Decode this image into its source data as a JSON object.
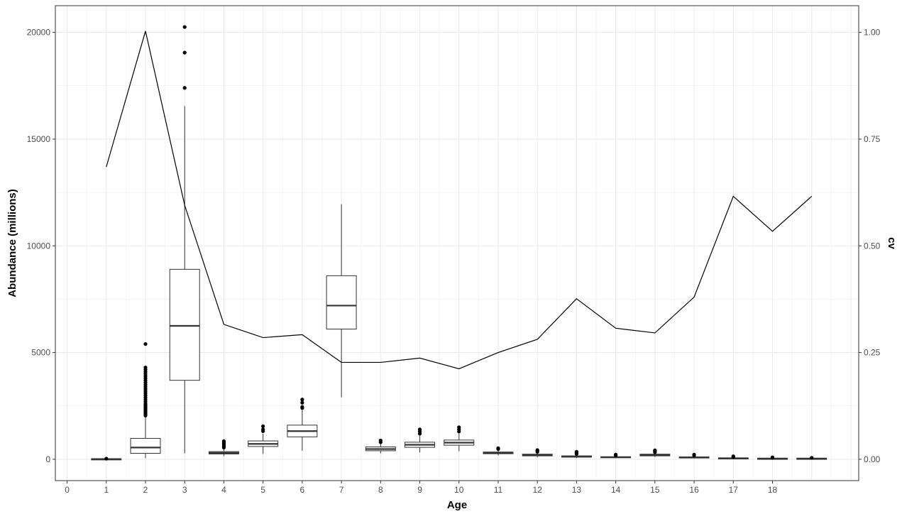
{
  "chart_data": {
    "type": "box",
    "xlabel": "Age",
    "ylabel": "Abundance (millions)",
    "y2label": "cv",
    "x_ticks": [
      "0",
      "1",
      "2",
      "3",
      "4",
      "5",
      "6",
      "7",
      "8",
      "9",
      "10",
      "11",
      "12",
      "13",
      "14",
      "15",
      "16",
      "17",
      "18"
    ],
    "y_ticks": [
      "0",
      "5000",
      "10000",
      "15000",
      "20000"
    ],
    "y2_ticks": [
      "0.00",
      "0.25",
      "0.50",
      "0.75",
      "1.00"
    ],
    "xlim": [
      -0.3,
      20.2
    ],
    "ylim": [
      -1000,
      21250
    ],
    "y2lim": [
      -0.05,
      1.0625
    ],
    "grid": true,
    "legend": "none",
    "colors": {
      "box": "#333333",
      "line": "#000000",
      "grid": "#ebebeb",
      "panel_border": "#333333"
    },
    "boxplots": [
      {
        "x": 1,
        "min": 0,
        "q1": 0,
        "median": 10,
        "q3": 20,
        "max": 40,
        "outliers": [
          30
        ]
      },
      {
        "x": 2,
        "min": 50,
        "q1": 280,
        "median": 550,
        "q3": 980,
        "max": 2000,
        "outliers": [
          2050,
          2100,
          2150,
          2200,
          2250,
          2300,
          2350,
          2400,
          2450,
          2500,
          2550,
          2600,
          2700,
          2800,
          2900,
          3000,
          3100,
          3200,
          3300,
          3400,
          3500,
          3600,
          3700,
          3800,
          3900,
          4000,
          4100,
          4200,
          4300,
          5400
        ]
      },
      {
        "x": 3,
        "min": 280,
        "q1": 3700,
        "median": 6250,
        "q3": 8900,
        "max": 16550,
        "outliers": [
          17400,
          19050,
          20250
        ]
      },
      {
        "x": 4,
        "min": 150,
        "q1": 250,
        "median": 300,
        "q3": 360,
        "max": 480,
        "outliers": [
          550,
          600,
          650,
          700,
          750,
          800,
          850
        ]
      },
      {
        "x": 5,
        "min": 250,
        "q1": 600,
        "median": 720,
        "q3": 860,
        "max": 1200,
        "outliers": [
          1320,
          1400,
          1550
        ]
      },
      {
        "x": 6,
        "min": 400,
        "q1": 1050,
        "median": 1320,
        "q3": 1600,
        "max": 2300,
        "outliers": [
          2400,
          2450,
          2650,
          2800
        ]
      },
      {
        "x": 7,
        "min": 2900,
        "q1": 6100,
        "median": 7200,
        "q3": 8600,
        "max": 11950,
        "outliers": []
      },
      {
        "x": 8,
        "min": 280,
        "q1": 400,
        "median": 480,
        "q3": 580,
        "max": 720,
        "outliers": [
          800,
          880
        ]
      },
      {
        "x": 9,
        "min": 320,
        "q1": 560,
        "median": 680,
        "q3": 800,
        "max": 1100,
        "outliers": [
          1200,
          1300,
          1400
        ]
      },
      {
        "x": 10,
        "min": 380,
        "q1": 660,
        "median": 780,
        "q3": 900,
        "max": 1200,
        "outliers": [
          1300,
          1400,
          1500
        ]
      },
      {
        "x": 11,
        "min": 180,
        "q1": 260,
        "median": 300,
        "q3": 340,
        "max": 420,
        "outliers": [
          480,
          520
        ]
      },
      {
        "x": 12,
        "min": 100,
        "q1": 160,
        "median": 200,
        "q3": 240,
        "max": 310,
        "outliers": [
          350,
          400,
          430
        ]
      },
      {
        "x": 13,
        "min": 60,
        "q1": 100,
        "median": 130,
        "q3": 160,
        "max": 220,
        "outliers": [
          250,
          280,
          320,
          350
        ]
      },
      {
        "x": 14,
        "min": 50,
        "q1": 80,
        "median": 100,
        "q3": 120,
        "max": 160,
        "outliers": [
          180,
          220
        ]
      },
      {
        "x": 15,
        "min": 110,
        "q1": 160,
        "median": 200,
        "q3": 240,
        "max": 300,
        "outliers": [
          330,
          380,
          420
        ]
      },
      {
        "x": 16,
        "min": 40,
        "q1": 70,
        "median": 90,
        "q3": 110,
        "max": 150,
        "outliers": [
          180,
          220
        ]
      },
      {
        "x": 17,
        "min": 15,
        "q1": 35,
        "median": 50,
        "q3": 65,
        "max": 90,
        "outliers": [
          110,
          140
        ]
      },
      {
        "x": 18,
        "min": 10,
        "q1": 25,
        "median": 35,
        "q3": 45,
        "max": 60,
        "outliers": [
          70,
          90
        ]
      },
      {
        "x": 19,
        "min": 10,
        "q1": 25,
        "median": 35,
        "q3": 45,
        "max": 60,
        "outliers": [
          70
        ]
      }
    ],
    "cv_line": {
      "x": [
        1,
        2,
        3,
        4,
        5,
        6,
        7,
        8,
        9,
        10,
        11,
        12,
        13,
        14,
        15,
        16,
        17,
        18,
        19
      ],
      "y": [
        0.685,
        1.003,
        0.595,
        0.316,
        0.285,
        0.292,
        0.227,
        0.227,
        0.237,
        0.212,
        0.25,
        0.281,
        0.376,
        0.307,
        0.296,
        0.38,
        0.616,
        0.534,
        0.616
      ]
    }
  }
}
